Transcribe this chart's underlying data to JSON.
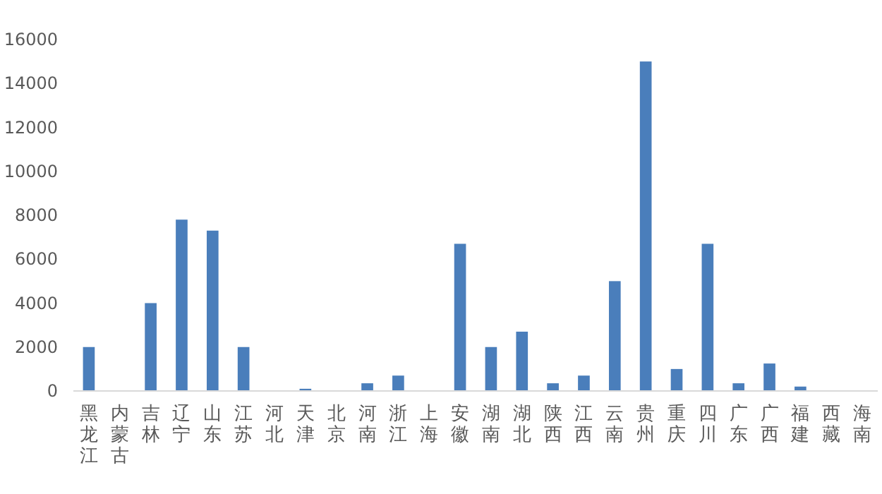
{
  "chart_data": {
    "type": "bar",
    "categories": [
      "黑龙江",
      "内蒙古",
      "吉林",
      "辽宁",
      "山东",
      "江苏",
      "河北",
      "天津",
      "北京",
      "河南",
      "浙江",
      "上海",
      "安徽",
      "湖南",
      "湖北",
      "陕西",
      "江西",
      "云南",
      "贵州",
      "重庆",
      "四川",
      "广东",
      "广西",
      "福建",
      "西藏",
      "海南"
    ],
    "values": [
      2000,
      0,
      4000,
      7800,
      7300,
      2000,
      0,
      100,
      0,
      350,
      700,
      0,
      6700,
      2000,
      2700,
      350,
      700,
      5000,
      15000,
      1000,
      6700,
      350,
      1250,
      200,
      0,
      0
    ],
    "color": "#4a7ebb",
    "ylim": [
      0,
      16000
    ],
    "yticks": [
      0,
      2000,
      4000,
      6000,
      8000,
      10000,
      12000,
      14000,
      16000
    ],
    "grid": false,
    "legend": false
  }
}
